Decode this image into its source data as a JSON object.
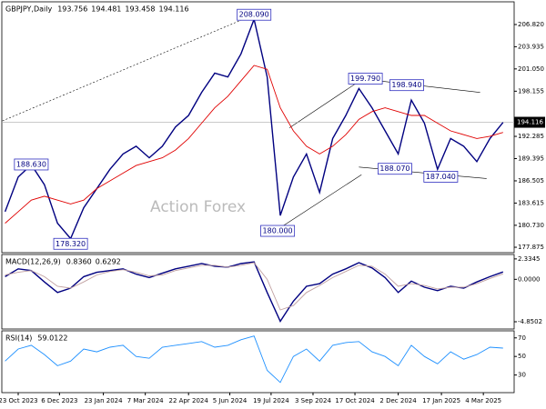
{
  "chart_data": [
    {
      "type": "line",
      "title": "GBPJPY,Daily",
      "ohlc": [
        193.756,
        194.481,
        193.458,
        194.116
      ],
      "watermark": "Action Forex",
      "x": [
        -2,
        0,
        2,
        4,
        6,
        8,
        10,
        12,
        14,
        16,
        18,
        20,
        22,
        24,
        26,
        28,
        30,
        32,
        34,
        36,
        38,
        40,
        42,
        44,
        46,
        48,
        50,
        52,
        54,
        56,
        58,
        60,
        62,
        64,
        66,
        68,
        70,
        72,
        74
      ],
      "series": [
        {
          "color": "#000080",
          "values": [
            182.5,
            187,
            188.6,
            186,
            181,
            179,
            183,
            185.5,
            188,
            190,
            191,
            189.5,
            191,
            193.5,
            195,
            198,
            200.5,
            200,
            203,
            207.5,
            200,
            182,
            187,
            190,
            185,
            192,
            195,
            198.5,
            196,
            193,
            190,
            197,
            194,
            188,
            192,
            191,
            189,
            192,
            194.1
          ]
        },
        {
          "color": "#e00000",
          "values": [
            181,
            182.5,
            184,
            184.5,
            184,
            183.5,
            184,
            185.5,
            186.5,
            187.5,
            188.5,
            189,
            189.5,
            190.5,
            192,
            194,
            196,
            197.5,
            199.5,
            201.5,
            201,
            196,
            193,
            191,
            190,
            191,
            192.5,
            194.5,
            195.5,
            196,
            195.5,
            195,
            195,
            194,
            193,
            192.5,
            192,
            192.3,
            192.8
          ]
        }
      ],
      "xlim": [
        -2.5,
        75.7
      ],
      "ylim": [
        177.17,
        209.77
      ],
      "yticks": [
        {
          "value": 206.82,
          "label": "206.820"
        },
        203.935,
        {
          "value": 201.05,
          "label": "201.050"
        },
        198.155,
        192.285,
        189.395,
        186.505,
        183.615,
        {
          "value": 180.73,
          "label": "180.730"
        },
        177.875
      ],
      "annotations": [
        {
          "x": 36,
          "value": 208.09,
          "label": "208.090"
        },
        {
          "x": 2,
          "value": 188.63,
          "label": "188.630"
        },
        {
          "x": 8,
          "value": 178.32,
          "label": "178.320"
        },
        {
          "x": 39.6,
          "value": 180,
          "label": "180.000"
        },
        {
          "x": 53,
          "value": 199.79,
          "label": "199.790"
        },
        {
          "x": 59.3,
          "value": 198.94,
          "label": "198.940"
        },
        {
          "x": 57.5,
          "value": 188.07,
          "label": "188.070"
        },
        {
          "x": 64.5,
          "value": 187.04,
          "label": "187.040"
        }
      ],
      "trendlines": [
        {
          "style": "dotted",
          "x": [
            -2.4,
            36
          ],
          "y": [
            194.3,
            208.1
          ]
        },
        {
          "style": "solid",
          "x": [
            39.6,
            52.4
          ],
          "y": [
            180.2,
            187.3
          ]
        },
        {
          "style": "solid",
          "x": [
            41.4,
            53.9
          ],
          "y": [
            193.4,
            200.5
          ]
        },
        {
          "style": "solid",
          "x": [
            52,
            70.5
          ],
          "y": [
            199.8,
            198
          ]
        },
        {
          "style": "solid",
          "x": [
            52,
            71.5
          ],
          "y": [
            188.3,
            186.8
          ]
        }
      ]
    },
    {
      "type": "line",
      "title": "MACD(12,26,9)",
      "readings": [
        {
          "value": 0.836,
          "label": "0.8360"
        },
        0.6292
      ],
      "x": [
        -2,
        0,
        2,
        4,
        6,
        8,
        10,
        12,
        14,
        16,
        18,
        20,
        22,
        24,
        26,
        28,
        30,
        32,
        34,
        36,
        38,
        40,
        42,
        44,
        46,
        48,
        50,
        52,
        54,
        56,
        58,
        60,
        62,
        64,
        66,
        68,
        70,
        72,
        74
      ],
      "series": [
        {
          "color": "#000080",
          "values": [
            0.3,
            1.2,
            1.0,
            -0.3,
            -1.5,
            -1.0,
            0.3,
            0.8,
            1.0,
            1.2,
            0.6,
            0.2,
            0.7,
            1.2,
            1.5,
            1.8,
            1.5,
            1.4,
            1.8,
            2.0,
            -1.5,
            -4.8,
            -2.5,
            -0.8,
            -0.5,
            0.6,
            1.2,
            1.9,
            1.3,
            0.2,
            -1.5,
            -0.2,
            -0.9,
            -1.3,
            -0.8,
            -1.0,
            -0.3,
            0.3,
            0.84
          ]
        },
        {
          "color": "#c0a0a0",
          "values": [
            0.5,
            0.8,
            1.0,
            0.3,
            -0.8,
            -1.0,
            -0.3,
            0.5,
            0.9,
            1.1,
            0.8,
            0.4,
            0.5,
            1.0,
            1.3,
            1.6,
            1.6,
            1.4,
            1.6,
            1.9,
            0.0,
            -3.5,
            -3.0,
            -1.5,
            -0.7,
            0.2,
            0.9,
            1.6,
            1.5,
            0.6,
            -0.8,
            -0.5,
            -0.7,
            -1.1,
            -0.9,
            -0.9,
            -0.5,
            0.1,
            0.63
          ]
        }
      ],
      "xlim": [
        -2.5,
        75.7
      ],
      "ylim": [
        -5.68,
        2.84
      ],
      "yticks": [
        2.3345,
        {
          "value": 0,
          "label": "0.0000"
        },
        -4.8502
      ]
    },
    {
      "type": "line",
      "title": "RSI(14)",
      "readings": [
        59.0122
      ],
      "x": [
        -2,
        0,
        2,
        4,
        6,
        8,
        10,
        12,
        14,
        16,
        18,
        20,
        22,
        24,
        26,
        28,
        30,
        32,
        34,
        36,
        38,
        40,
        42,
        44,
        46,
        48,
        50,
        52,
        54,
        56,
        58,
        60,
        62,
        64,
        66,
        68,
        70,
        72,
        74
      ],
      "series": [
        {
          "color": "#1e90ff",
          "values": [
            45,
            58,
            62,
            52,
            40,
            45,
            58,
            55,
            60,
            62,
            50,
            48,
            60,
            62,
            64,
            66,
            60,
            62,
            68,
            72,
            35,
            22,
            50,
            58,
            45,
            62,
            65,
            66,
            55,
            50,
            40,
            62,
            50,
            42,
            55,
            47,
            52,
            60,
            59
          ]
        }
      ],
      "xlim": [
        -2.5,
        75.7
      ],
      "ylim": [
        11,
        77.6
      ],
      "yticks": [
        70,
        50,
        30
      ],
      "xticks": [
        {
          "value": 0,
          "label": "23 Oct 2023"
        },
        {
          "value": 6.3,
          "label": "6 Dec 2023"
        },
        {
          "value": 13,
          "label": "23 Jan 2024"
        },
        {
          "value": 19.4,
          "label": "7 Mar 2024"
        },
        {
          "value": 26,
          "label": "22 Apr 2024"
        },
        {
          "value": 32.3,
          "label": "5 Jun 2024"
        },
        {
          "value": 38.6,
          "label": "19 Jul 2024"
        },
        {
          "value": 45,
          "label": "3 Sep 2024"
        },
        {
          "value": 51.4,
          "label": "17 Oct 2024"
        },
        {
          "value": 58,
          "label": "2 Dec 2024"
        },
        {
          "value": 64.6,
          "label": "17 Jan 2025"
        },
        {
          "value": 71,
          "label": "4 Mar 2025"
        }
      ]
    }
  ]
}
